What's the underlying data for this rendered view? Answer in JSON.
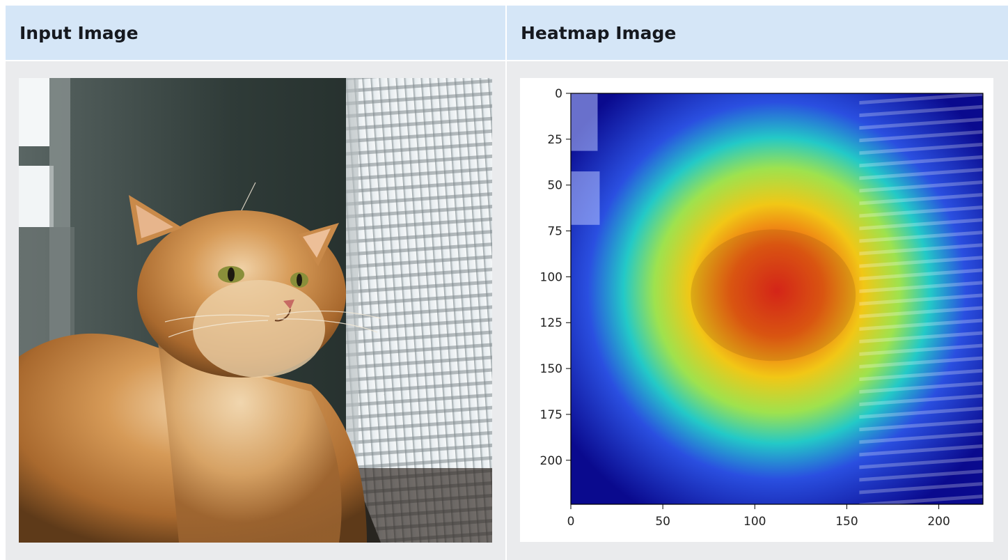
{
  "table": {
    "headers": {
      "input": "Input Image",
      "heatmap": "Heatmap Image"
    }
  },
  "input_image": {
    "alt": "orange long-haired cat beside window blinds"
  },
  "chart_data": {
    "type": "heatmap",
    "overlay": "Grad-CAM heatmap (jet colormap) over cat photo",
    "x": {
      "ticks": [
        0,
        50,
        100,
        150,
        200
      ],
      "lim": [
        0,
        224
      ]
    },
    "y": {
      "ticks": [
        0,
        25,
        50,
        75,
        100,
        125,
        150,
        175,
        200
      ],
      "lim": [
        224,
        0
      ]
    },
    "hotspot": {
      "x": 110,
      "y": 110
    },
    "colormap": [
      "#00008f",
      "#0000ff",
      "#00ffff",
      "#ffff00",
      "#ff0000"
    ],
    "grid": false
  }
}
